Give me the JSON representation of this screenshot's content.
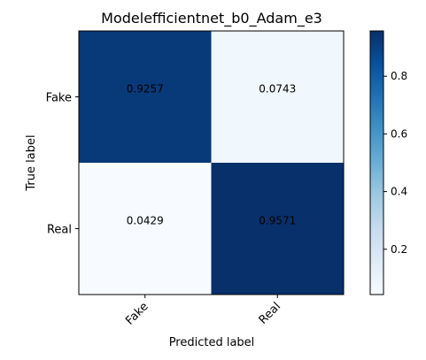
{
  "chart_data": {
    "type": "heatmap",
    "title": "Modelefficientnet_b0_Adam_e3",
    "xlabel": "Predicted label",
    "ylabel": "True label",
    "x_categories": [
      "Fake",
      "Real"
    ],
    "y_categories": [
      "Fake",
      "Real"
    ],
    "values": [
      [
        0.9257,
        0.0743
      ],
      [
        0.0429,
        0.9571
      ]
    ],
    "value_labels": [
      [
        "0.9257",
        "0.0743"
      ],
      [
        "0.0429",
        "0.9571"
      ]
    ],
    "colormap": "Blues",
    "colorbar": {
      "range": [
        0.0429,
        0.9571
      ],
      "ticks": [
        0.2,
        0.4,
        0.6,
        0.8
      ],
      "tick_labels": [
        "0.2",
        "0.4",
        "0.6",
        "0.8"
      ]
    },
    "grid": false
  }
}
